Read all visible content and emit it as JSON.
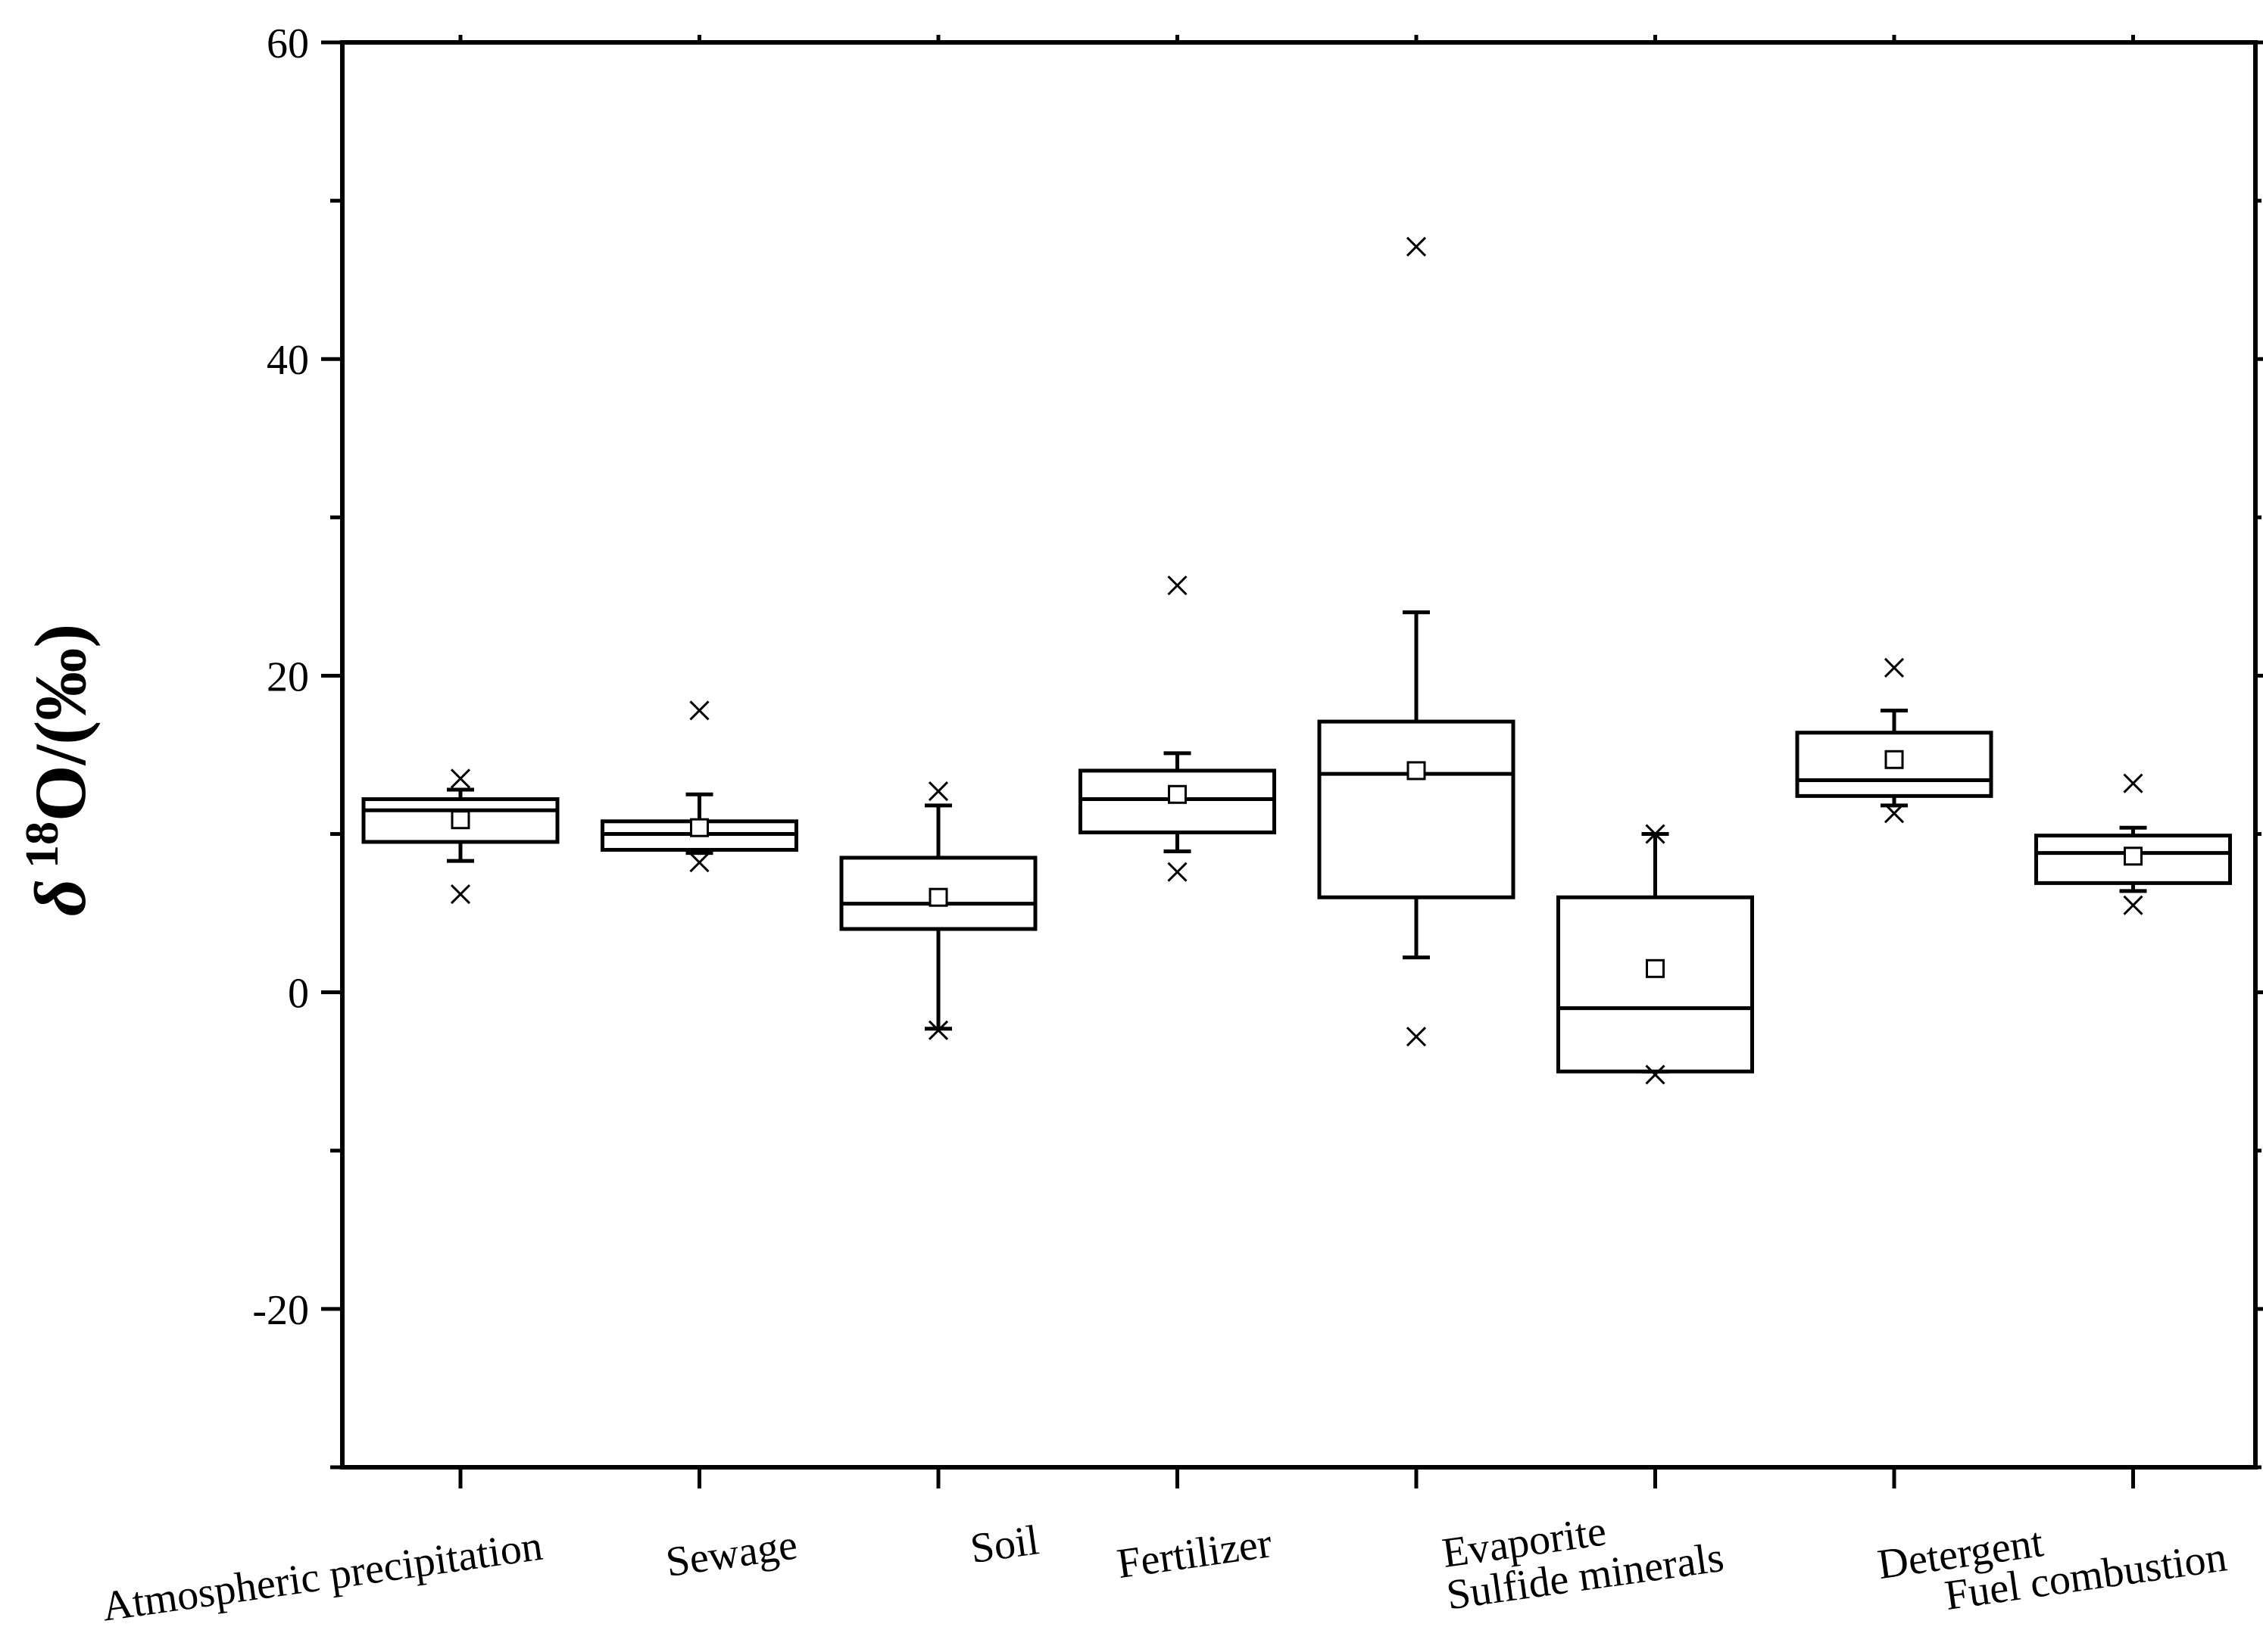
{
  "chart_data": {
    "type": "box",
    "ylabel_symbol": "δ",
    "ylabel_sup": "18",
    "ylabel_rest": "O/(‰)",
    "ylim": [
      -30,
      60
    ],
    "yticks": [
      -20,
      0,
      20,
      40,
      60
    ],
    "ytick_labels": [
      "-20",
      "0",
      "20",
      "40",
      "60"
    ],
    "categories": [
      "Atmospheric precipitation",
      "Sewage",
      "Soil",
      "Fertilizer",
      "Evaporite",
      "Sulfide minerals",
      "Detergent",
      "Fuel combustion"
    ],
    "boxes": [
      {
        "q1": 9.5,
        "median": 11.5,
        "q3": 12.2,
        "whisker_low": 8.3,
        "whisker_high": 12.8,
        "mean": 10.9,
        "outliers": [
          6.2,
          13.5
        ]
      },
      {
        "q1": 9.0,
        "median": 10.0,
        "q3": 10.8,
        "whisker_low": 8.8,
        "whisker_high": 12.5,
        "mean": 10.4,
        "outliers": [
          8.2,
          17.8
        ]
      },
      {
        "q1": 4.0,
        "median": 5.6,
        "q3": 8.5,
        "whisker_low": -2.3,
        "whisker_high": 11.8,
        "mean": 6.0,
        "outliers": [
          -2.4,
          12.7
        ]
      },
      {
        "q1": 10.1,
        "median": 12.2,
        "q3": 14.0,
        "whisker_low": 8.9,
        "whisker_high": 15.1,
        "mean": 12.5,
        "outliers": [
          7.6,
          25.7
        ]
      },
      {
        "q1": 6.0,
        "median": 13.8,
        "q3": 17.1,
        "whisker_low": 2.2,
        "whisker_high": 24.0,
        "mean": 14.0,
        "outliers": [
          -2.8,
          47.1
        ]
      },
      {
        "q1": -5.0,
        "median": -1.0,
        "q3": 6.0,
        "whisker_low": -5.0,
        "whisker_high": 10.0,
        "mean": 1.5,
        "outliers": [
          -5.2,
          10.0
        ]
      },
      {
        "q1": 12.4,
        "median": 13.4,
        "q3": 16.4,
        "whisker_low": 11.8,
        "whisker_high": 17.8,
        "mean": 14.7,
        "outliers": [
          11.3,
          20.5
        ]
      },
      {
        "q1": 6.9,
        "median": 8.8,
        "q3": 9.9,
        "whisker_low": 6.4,
        "whisker_high": 10.4,
        "mean": 8.6,
        "outliers": [
          5.5,
          13.2
        ]
      }
    ]
  }
}
